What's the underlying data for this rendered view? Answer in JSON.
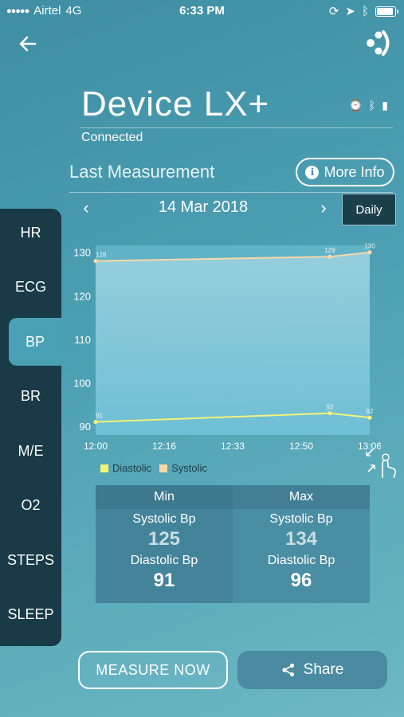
{
  "status_bar": {
    "carrier": "Airtel",
    "network": "4G",
    "time": "6:33 PM"
  },
  "device": {
    "name": "Device LX+",
    "connection_status": "Connected"
  },
  "section_title": "Last Measurement",
  "more_info_label": "More Info",
  "date_nav": {
    "prev": "‹",
    "date": "14 Mar 2018",
    "next": "›",
    "period": "Daily"
  },
  "sidebar": {
    "items": [
      {
        "label": "HR"
      },
      {
        "label": "ECG"
      },
      {
        "label": "BP",
        "active": true
      },
      {
        "label": "BR"
      },
      {
        "label": "M/E"
      },
      {
        "label": "O2"
      },
      {
        "label": "STEPS"
      },
      {
        "label": "SLEEP"
      }
    ]
  },
  "chart_data": {
    "type": "area",
    "x": [
      "12:00",
      "12:50",
      "13:06"
    ],
    "x_ticks": [
      "12:00",
      "12:16",
      "12:33",
      "12:50",
      "13:06"
    ],
    "series": [
      {
        "name": "Systolic",
        "color": "#f7d8a6",
        "values": [
          128,
          129,
          130
        ],
        "labels": [
          "128",
          "129",
          "130"
        ]
      },
      {
        "name": "Diastolic",
        "color": "#f5f27a",
        "values": [
          91,
          93,
          92
        ],
        "labels": [
          "91",
          "93",
          "92"
        ]
      }
    ],
    "y_ticks": [
      90,
      100,
      110,
      120,
      130
    ],
    "ylim": [
      88,
      130.5
    ],
    "legend_placement": "bottom-left"
  },
  "legend": {
    "diastolic": "Diastolic",
    "systolic": "Systolic"
  },
  "stats": {
    "min": {
      "header": "Min",
      "systolic_label": "Systolic Bp",
      "systolic": "125",
      "diastolic_label": "Diastolic Bp",
      "diastolic": "91"
    },
    "max": {
      "header": "Max",
      "systolic_label": "Systolic Bp",
      "systolic": "134",
      "diastolic_label": "Diastolic Bp",
      "diastolic": "96"
    }
  },
  "actions": {
    "measure": "MEASURE NOW",
    "share": "Share"
  }
}
